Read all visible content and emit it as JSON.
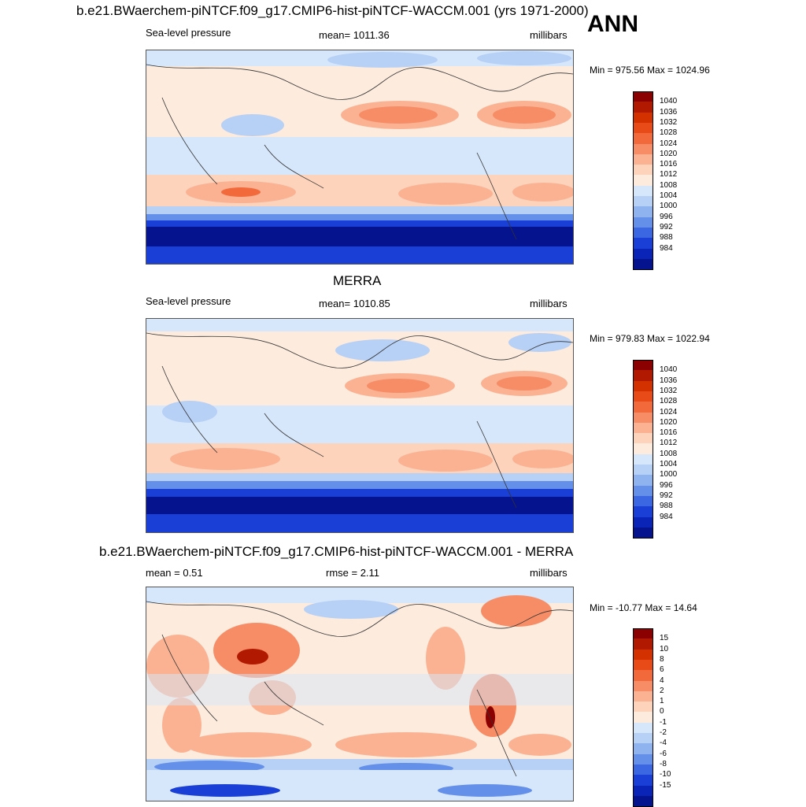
{
  "figure": {
    "title": "b.e21.BWaerchem-piNTCF.f09_g17.CMIP6-hist-piNTCF-WACCM.001 (yrs 1971-2000)",
    "season": "ANN"
  },
  "panels": [
    {
      "id": "model",
      "title": "",
      "left_label": "Sea-level pressure",
      "center_label": "mean= 1011.36",
      "right_label": "millibars",
      "minmax": "Min = 975.56 Max = 1024.96",
      "colorbar": {
        "labels": [
          "1040",
          "1036",
          "1032",
          "1028",
          "1024",
          "1020",
          "1016",
          "1012",
          "1008",
          "1004",
          "1000",
          "996",
          "992",
          "988",
          "984"
        ],
        "colors": [
          "#8b0000",
          "#b21a00",
          "#d33200",
          "#e84a18",
          "#f26a3c",
          "#f78d66",
          "#fbb293",
          "#fdd3bc",
          "#fdebdd",
          "#d6e7fb",
          "#b7d0f5",
          "#8fb3ef",
          "#6490e9",
          "#3b67e2",
          "#1a3fd6",
          "#0a24b8",
          "#05138e"
        ]
      }
    },
    {
      "id": "obs",
      "title": "MERRA",
      "left_label": "Sea-level pressure",
      "center_label": "mean= 1010.85",
      "right_label": "millibars",
      "minmax": "Min = 979.83 Max = 1022.94",
      "colorbar": {
        "labels": [
          "1040",
          "1036",
          "1032",
          "1028",
          "1024",
          "1020",
          "1016",
          "1012",
          "1008",
          "1004",
          "1000",
          "996",
          "992",
          "988",
          "984"
        ],
        "colors": [
          "#8b0000",
          "#b21a00",
          "#d33200",
          "#e84a18",
          "#f26a3c",
          "#f78d66",
          "#fbb293",
          "#fdd3bc",
          "#fdebdd",
          "#d6e7fb",
          "#b7d0f5",
          "#8fb3ef",
          "#6490e9",
          "#3b67e2",
          "#1a3fd6",
          "#0a24b8",
          "#05138e"
        ]
      }
    },
    {
      "id": "diff",
      "title": "b.e21.BWaerchem-piNTCF.f09_g17.CMIP6-hist-piNTCF-WACCM.001 - MERRA",
      "left_label": "mean =   0.51",
      "center_label": "rmse =   2.11",
      "right_label": "millibars",
      "minmax": "Min = -10.77 Max =  14.64",
      "colorbar": {
        "labels": [
          "15",
          "10",
          "8",
          "6",
          "4",
          "2",
          "1",
          "0",
          "-1",
          "-2",
          "-4",
          "-6",
          "-8",
          "-10",
          "-15"
        ],
        "colors": [
          "#8b0000",
          "#b21a00",
          "#d33200",
          "#e84a18",
          "#f26a3c",
          "#f78d66",
          "#fbb293",
          "#fdd3bc",
          "#fdebdd",
          "#d6e7fb",
          "#b7d0f5",
          "#8fb3ef",
          "#6490e9",
          "#3b67e2",
          "#1a3fd6",
          "#0a24b8",
          "#05138e"
        ]
      }
    }
  ]
}
